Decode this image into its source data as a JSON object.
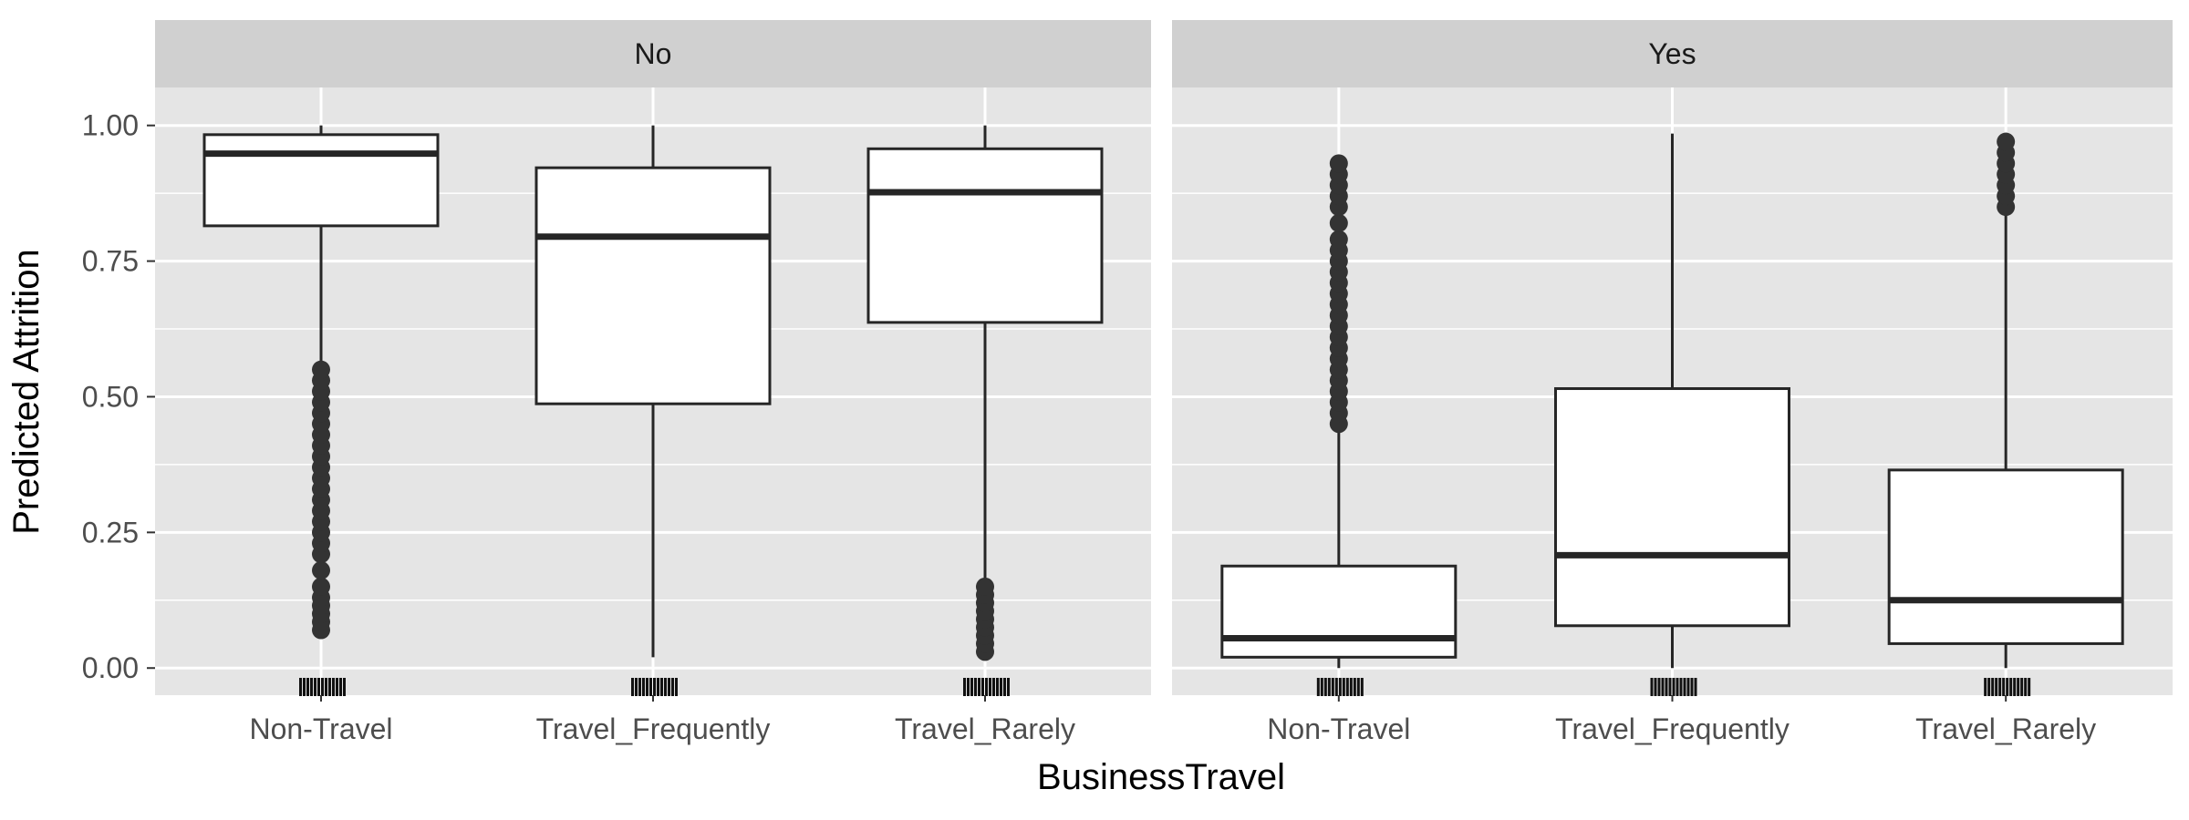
{
  "chart_data": {
    "type": "box",
    "xlabel": "BusinessTravel",
    "ylabel": "Predicted Attrition",
    "ylim": [
      -0.05,
      1.07
    ],
    "yticks": [
      0.0,
      0.25,
      0.5,
      0.75,
      1.0
    ],
    "ytick_labels": [
      "0.00",
      "0.25",
      "0.50",
      "0.75",
      "1.00"
    ],
    "categories": [
      "Non-Travel",
      "Travel_Frequently",
      "Travel_Rarely"
    ],
    "grid": true,
    "legend": "none",
    "colors": {
      "panel_bg": "#e5e5e5",
      "strip_bg": "#d0d0d0",
      "grid": "#ffffff",
      "box_fill": "#ffffff",
      "box_line": "#262626"
    },
    "panels": [
      {
        "facet": "No",
        "boxes": [
          {
            "category": "Non-Travel",
            "min": 0.07,
            "q1": 0.815,
            "median": 0.948,
            "q3": 0.983,
            "max": 1.0,
            "outliers": [
              0.07,
              0.085,
              0.1,
              0.115,
              0.13,
              0.15,
              0.18,
              0.21,
              0.23,
              0.25,
              0.27,
              0.29,
              0.31,
              0.33,
              0.35,
              0.37,
              0.39,
              0.41,
              0.43,
              0.45,
              0.47,
              0.49,
              0.51,
              0.53,
              0.55
            ]
          },
          {
            "category": "Travel_Frequently",
            "min": 0.02,
            "q1": 0.487,
            "median": 0.795,
            "q3": 0.922,
            "max": 1.0,
            "outliers": []
          },
          {
            "category": "Travel_Rarely",
            "min": 0.16,
            "q1": 0.637,
            "median": 0.877,
            "q3": 0.957,
            "max": 1.0,
            "outliers": [
              0.03,
              0.045,
              0.06,
              0.075,
              0.09,
              0.105,
              0.12,
              0.135,
              0.15
            ]
          }
        ]
      },
      {
        "facet": "Yes",
        "boxes": [
          {
            "category": "Non-Travel",
            "min": 0.0,
            "q1": 0.02,
            "median": 0.055,
            "q3": 0.188,
            "max": 0.44,
            "outliers": [
              0.45,
              0.47,
              0.49,
              0.51,
              0.53,
              0.55,
              0.57,
              0.59,
              0.61,
              0.63,
              0.65,
              0.67,
              0.69,
              0.71,
              0.73,
              0.75,
              0.77,
              0.79,
              0.82,
              0.85,
              0.87,
              0.89,
              0.91,
              0.93
            ]
          },
          {
            "category": "Travel_Frequently",
            "min": 0.0,
            "q1": 0.078,
            "median": 0.208,
            "q3": 0.515,
            "max": 0.985,
            "outliers": []
          },
          {
            "category": "Travel_Rarely",
            "min": 0.0,
            "q1": 0.045,
            "median": 0.125,
            "q3": 0.365,
            "max": 0.84,
            "outliers": [
              0.85,
              0.87,
              0.89,
              0.91,
              0.93,
              0.95,
              0.97
            ]
          }
        ]
      }
    ]
  }
}
